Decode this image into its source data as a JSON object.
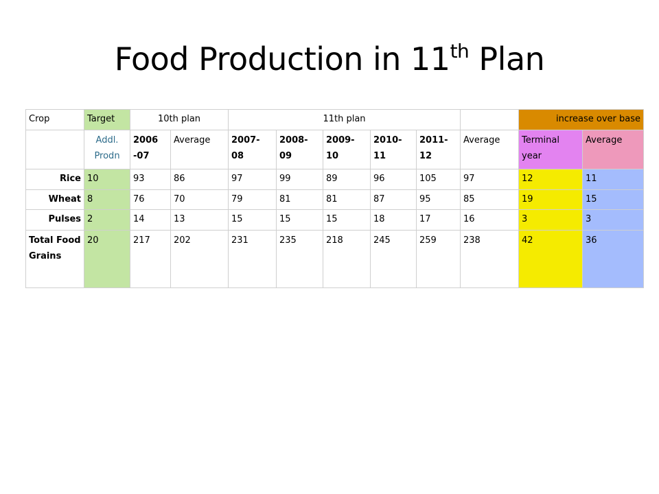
{
  "title": {
    "main": "Food Production in 11",
    "sup": "th",
    "tail": " Plan"
  },
  "header1": {
    "crop": "Crop",
    "target": "Target",
    "tenth": "10th plan",
    "eleventh": "11th plan",
    "blank": "",
    "increase": "increase over base"
  },
  "header2": [
    "",
    "Addl. Prodn",
    "2006 -07",
    "Average",
    "2007- 08",
    "2008- 09",
    "2009- 10",
    "2010- 11",
    "2011- 12",
    "Average",
    "Terminal year",
    "Average"
  ],
  "rows": [
    {
      "crop": "Rice",
      "values": [
        "10",
        "93",
        "86",
        "97",
        "99",
        "89",
        "96",
        "105",
        "97",
        "12",
        "11"
      ]
    },
    {
      "crop": "Wheat",
      "values": [
        "8",
        "76",
        "70",
        "79",
        "81",
        "81",
        "87",
        "95",
        "85",
        "19",
        "15"
      ]
    },
    {
      "crop": "Pulses",
      "values": [
        "2",
        "14",
        "13",
        "15",
        "15",
        "15",
        "18",
        "17",
        "16",
        "3",
        "3"
      ]
    },
    {
      "crop": "Total Food Grains",
      "values": [
        "20",
        "217",
        "202",
        "231",
        "235",
        "218",
        "245",
        "259",
        "238",
        "42",
        "36"
      ]
    }
  ],
  "colors": {
    "target": "#c3e5a3",
    "increase_header": "#d98a00",
    "terminal_header": "#e383f0",
    "average_header": "#ee99bb",
    "terminal_cells": "#f5eb00",
    "average_cells": "#a4bcfd"
  }
}
